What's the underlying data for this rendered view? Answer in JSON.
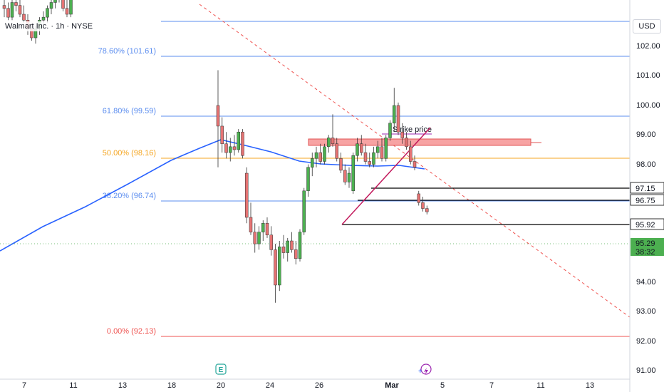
{
  "header": {
    "symbol_title": "Walmart Inc. · 1h · NYSE",
    "currency": "USD"
  },
  "colors": {
    "up": "#4caf50",
    "down": "#e57373",
    "wick": "#555555",
    "ma": "#2962ff",
    "fib_blue": "#5b8def",
    "fib_orange": "#f5a623",
    "fib_red": "#ef5350",
    "trend_red": "#ef5350",
    "strike_box": "#f7a3a3",
    "strike_line": "#9c27b0",
    "label_bg": "#ffffff",
    "price_last": "#4caf50"
  },
  "chart_data": {
    "type": "candlestick",
    "x_tick_labels": [
      "7",
      "11",
      "13",
      "18",
      "20",
      "24",
      "26",
      "Mar",
      "5",
      "7",
      "11",
      "13"
    ],
    "y_ticks": [
      "102.00",
      "101.00",
      "100.00",
      "99.00",
      "98.00",
      "94.00",
      "93.00",
      "92.00",
      "91.00"
    ],
    "y_range": [
      90.7,
      103.5
    ],
    "fib_levels": [
      {
        "label": "78.60% (101.61)",
        "price": 101.61,
        "color": "fib_blue"
      },
      {
        "label": "61.80% (99.59)",
        "price": 99.59,
        "color": "fib_blue"
      },
      {
        "label": "50.00% (98.16)",
        "price": 98.16,
        "color": "fib_orange"
      },
      {
        "label": "38.20% (96.74)",
        "price": 96.74,
        "color": "fib_blue"
      },
      {
        "label": "0.00% (92.13)",
        "price": 92.13,
        "color": "fib_red"
      }
    ],
    "horizontal_levels": [
      {
        "label": "97.15",
        "price": 97.15
      },
      {
        "label": "96.75",
        "price": 96.75
      },
      {
        "label": "95.92",
        "price": 95.92
      }
    ],
    "last_price": {
      "label": "95.29",
      "countdown": "38:32",
      "price": 95.29
    },
    "annotation": "Strike price",
    "strike_zone": [
      98.65,
      98.85
    ],
    "candles": [
      [
        102.3,
        102.6,
        101.9,
        102.2
      ],
      [
        102.2,
        102.4,
        101.8,
        101.9
      ],
      [
        101.9,
        102.5,
        101.8,
        102.4
      ],
      [
        102.4,
        102.7,
        102.1,
        102.3
      ],
      [
        102.3,
        102.5,
        101.9,
        102.0
      ],
      [
        102.0,
        102.3,
        101.7,
        101.8
      ],
      [
        101.8,
        102.0,
        101.3,
        101.5
      ],
      [
        101.5,
        101.7,
        101.1,
        101.2
      ],
      [
        101.2,
        101.6,
        101.0,
        101.5
      ],
      [
        101.5,
        101.9,
        101.3,
        101.8
      ],
      [
        101.8,
        102.1,
        101.6,
        101.9
      ],
      [
        101.9,
        102.3,
        101.7,
        102.2
      ],
      [
        102.2,
        102.6,
        102.0,
        102.4
      ],
      [
        102.4,
        102.8,
        102.2,
        102.7
      ],
      [
        102.7,
        103.0,
        102.4,
        102.5
      ],
      [
        102.5,
        102.7,
        102.1,
        102.2
      ],
      [
        102.2,
        102.5,
        101.9,
        102.0
      ],
      [
        102.0,
        102.8,
        101.9,
        102.7
      ],
      [
        102.7,
        103.4,
        102.6,
        103.2
      ],
      [
        103.2,
        103.5,
        102.9,
        103.1
      ],
      [
        103.1,
        103.3,
        102.7,
        102.9
      ],
      [
        102.9,
        103.2,
        102.6,
        103.0
      ],
      [
        103.0,
        103.4,
        102.8,
        103.3
      ],
      [
        103.3,
        103.5,
        102.7,
        102.8
      ],
      [
        98.9,
        100.1,
        96.8,
        98.2
      ],
      [
        98.2,
        98.5,
        97.3,
        97.6
      ],
      [
        97.6,
        98.0,
        97.1,
        97.3
      ],
      [
        97.3,
        97.8,
        97.0,
        97.5
      ],
      [
        97.5,
        97.9,
        97.2,
        97.4
      ],
      [
        97.4,
        98.1,
        97.3,
        98.0
      ],
      [
        98.0,
        98.1,
        97.1,
        97.2
      ],
      [
        96.6,
        96.8,
        94.9,
        95.1
      ],
      [
        95.1,
        95.6,
        94.5,
        94.6
      ],
      [
        94.6,
        94.9,
        93.9,
        94.2
      ],
      [
        94.2,
        94.8,
        94.0,
        94.6
      ],
      [
        94.6,
        95.0,
        94.3,
        94.9
      ],
      [
        94.9,
        95.1,
        94.4,
        94.5
      ],
      [
        94.5,
        94.8,
        93.8,
        94.0
      ],
      [
        94.0,
        94.2,
        92.2,
        92.8
      ],
      [
        92.8,
        94.3,
        92.6,
        94.1
      ],
      [
        94.1,
        94.5,
        93.7,
        93.9
      ],
      [
        93.9,
        94.4,
        93.6,
        94.3
      ],
      [
        94.3,
        94.6,
        93.9,
        94.0
      ],
      [
        94.0,
        94.3,
        93.5,
        93.7
      ],
      [
        93.7,
        94.7,
        93.6,
        94.6
      ],
      [
        94.6,
        96.1,
        94.5,
        96.0
      ],
      [
        96.0,
        96.9,
        95.8,
        96.8
      ],
      [
        96.8,
        97.3,
        96.5,
        97.1
      ],
      [
        97.1,
        97.5,
        96.8,
        97.3
      ],
      [
        97.3,
        97.6,
        96.9,
        97.0
      ],
      [
        97.0,
        97.6,
        96.9,
        97.5
      ],
      [
        97.5,
        97.9,
        97.3,
        97.8
      ],
      [
        97.8,
        98.6,
        97.5,
        97.6
      ],
      [
        97.6,
        97.8,
        97.0,
        97.1
      ],
      [
        97.1,
        97.3,
        96.6,
        96.7
      ],
      [
        96.7,
        96.9,
        96.2,
        96.3
      ],
      [
        96.3,
        96.8,
        96.1,
        96.6
      ],
      [
        96.0,
        97.3,
        95.9,
        97.2
      ],
      [
        97.2,
        97.8,
        97.0,
        97.6
      ],
      [
        97.6,
        97.9,
        97.2,
        97.3
      ],
      [
        97.3,
        97.6,
        96.9,
        97.0
      ],
      [
        97.0,
        97.3,
        96.8,
        96.9
      ],
      [
        96.9,
        97.5,
        96.8,
        97.3
      ],
      [
        97.3,
        97.7,
        97.1,
        97.5
      ],
      [
        97.5,
        97.8,
        97.0,
        97.1
      ],
      [
        97.1,
        97.9,
        97.0,
        97.8
      ],
      [
        97.8,
        98.4,
        97.7,
        98.3
      ],
      [
        98.3,
        99.5,
        98.0,
        98.9
      ],
      [
        98.9,
        99.0,
        97.9,
        98.0
      ],
      [
        98.0,
        98.3,
        97.6,
        97.8
      ],
      [
        97.8,
        98.0,
        97.4,
        97.5
      ],
      [
        97.5,
        97.7,
        96.9,
        97.0
      ],
      [
        97.0,
        97.2,
        96.7,
        96.8
      ],
      [
        95.9,
        96.0,
        95.5,
        95.6
      ],
      [
        95.6,
        95.8,
        95.3,
        95.4
      ],
      [
        95.4,
        95.5,
        95.2,
        95.29
      ]
    ]
  }
}
